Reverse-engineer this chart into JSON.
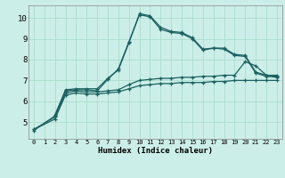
{
  "xlabel": "Humidex (Indice chaleur)",
  "bg_color": "#cceee8",
  "grid_color": "#aaddcc",
  "line_color": "#1a6060",
  "xlim": [
    -0.5,
    23.5
  ],
  "ylim": [
    4.2,
    10.6
  ],
  "x_ticks": [
    0,
    1,
    2,
    3,
    4,
    5,
    6,
    7,
    8,
    9,
    10,
    11,
    12,
    13,
    14,
    15,
    16,
    17,
    18,
    19,
    20,
    21,
    22,
    23
  ],
  "y_ticks": [
    5,
    6,
    7,
    8,
    9,
    10
  ],
  "series": [
    {
      "x": [
        0,
        2,
        3,
        4,
        5,
        6,
        7,
        8,
        9,
        10,
        11,
        12,
        13,
        14,
        15,
        16,
        17,
        18,
        19,
        20,
        21,
        22,
        23
      ],
      "y": [
        4.6,
        5.3,
        6.55,
        6.6,
        6.6,
        6.6,
        7.1,
        7.5,
        8.8,
        10.2,
        10.1,
        9.55,
        9.35,
        9.3,
        9.05,
        8.5,
        8.55,
        8.55,
        8.25,
        8.2,
        7.4,
        7.25,
        7.2
      ]
    },
    {
      "x": [
        2,
        3,
        4,
        5,
        6,
        7,
        8,
        9,
        10,
        11,
        12,
        13,
        14,
        15,
        16,
        17,
        18,
        19,
        20,
        21,
        22,
        23
      ],
      "y": [
        5.35,
        6.5,
        6.55,
        6.55,
        6.5,
        7.05,
        7.55,
        8.85,
        10.15,
        10.05,
        9.45,
        9.3,
        9.25,
        9.0,
        8.45,
        8.55,
        8.5,
        8.2,
        8.15,
        7.35,
        7.2,
        7.15
      ]
    },
    {
      "x": [
        0,
        2,
        3,
        4,
        5,
        6,
        7,
        8,
        9,
        10,
        11,
        12,
        13,
        14,
        15,
        16,
        17,
        18,
        19,
        20,
        21,
        22,
        23
      ],
      "y": [
        4.65,
        5.25,
        6.4,
        6.5,
        6.45,
        6.45,
        6.5,
        6.55,
        6.8,
        7.0,
        7.05,
        7.1,
        7.1,
        7.15,
        7.15,
        7.2,
        7.2,
        7.25,
        7.25,
        7.9,
        7.7,
        7.25,
        7.25
      ]
    },
    {
      "x": [
        0,
        2,
        3,
        4,
        5,
        6,
        7,
        8,
        9,
        10,
        11,
        12,
        13,
        14,
        15,
        16,
        17,
        18,
        19,
        20,
        21,
        22,
        23
      ],
      "y": [
        4.65,
        5.15,
        6.3,
        6.4,
        6.35,
        6.35,
        6.4,
        6.45,
        6.6,
        6.75,
        6.8,
        6.85,
        6.85,
        6.9,
        6.9,
        6.9,
        6.95,
        6.95,
        7.0,
        7.0,
        7.0,
        7.0,
        7.0
      ]
    }
  ]
}
